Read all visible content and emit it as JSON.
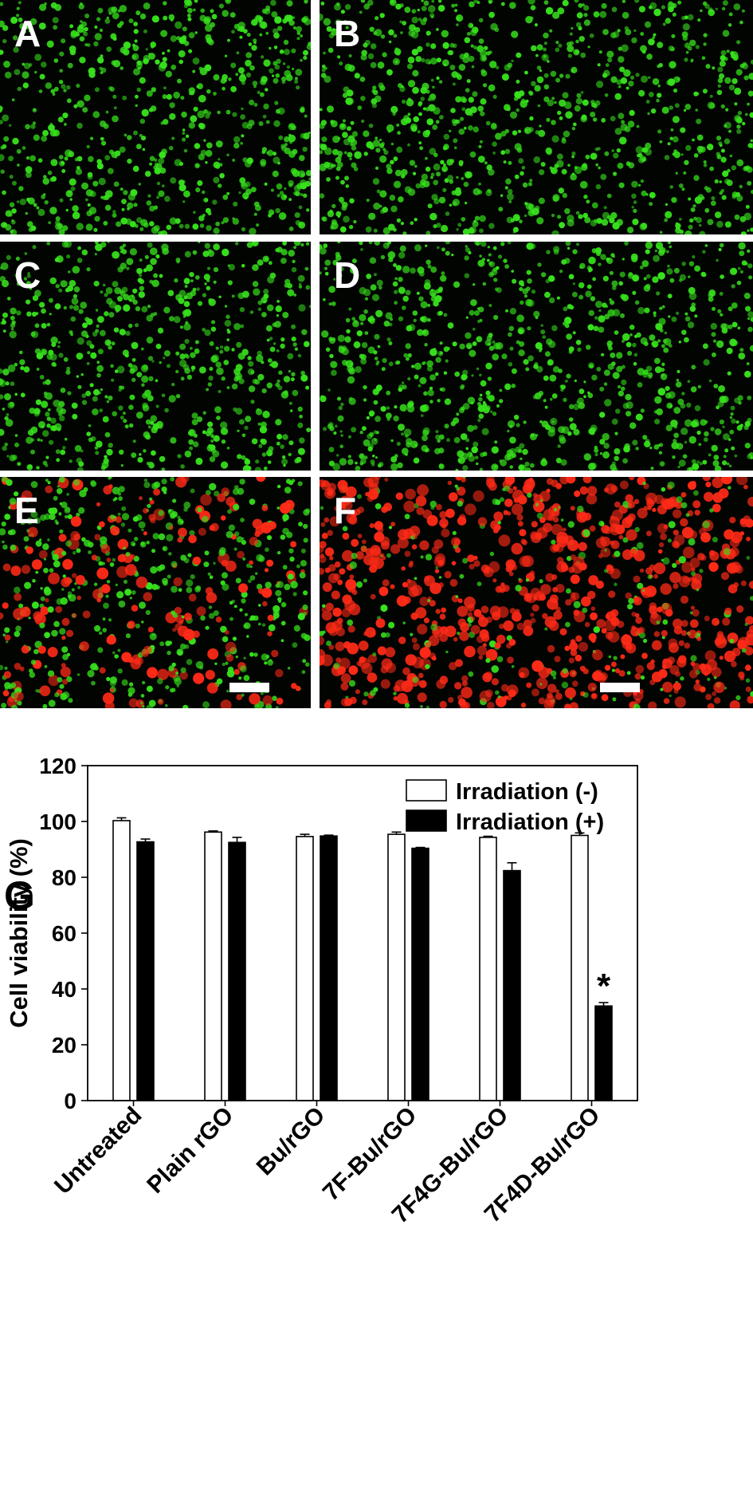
{
  "panels": {
    "labels": [
      "A",
      "B",
      "C",
      "D",
      "E",
      "F"
    ],
    "colors": {
      "background": "#020402",
      "live": "#37e21c",
      "dead": "#ff2a17",
      "scale_bar": "#ffffff",
      "label": "#ffffff"
    }
  },
  "chart_data": {
    "type": "bar",
    "panel_label": "G",
    "categories": [
      "Untreated",
      "Plain rGO",
      "Bu/rGO",
      "7F-Bu/rGO",
      "7F4G-Bu/rGO",
      "7F4D-Bu/rGO"
    ],
    "series": [
      {
        "name": "Irradiation (-)",
        "values": [
          100.3,
          96.2,
          94.6,
          95.4,
          94.3,
          95.0
        ],
        "errors": [
          1.0,
          0.4,
          0.8,
          0.8,
          0.4,
          0.9
        ],
        "fill": "#ffffff",
        "stroke": "#000000"
      },
      {
        "name": "Irradiation (+)",
        "values": [
          92.7,
          92.5,
          94.8,
          90.4,
          82.4,
          33.9
        ],
        "errors": [
          1.0,
          1.8,
          0.3,
          0.3,
          2.8,
          1.2
        ],
        "fill": "#000000",
        "stroke": "#000000"
      }
    ],
    "significance": [
      {
        "category": "7F4D-Bu/rGO",
        "series": "Irradiation (+)",
        "mark": "*"
      }
    ],
    "ylabel": "Cell viability (%)",
    "xlabel": "",
    "ylim": [
      0,
      120
    ],
    "yticks": [
      0,
      20,
      40,
      60,
      80,
      100,
      120
    ],
    "grid": false,
    "legend_position": "top-right"
  }
}
